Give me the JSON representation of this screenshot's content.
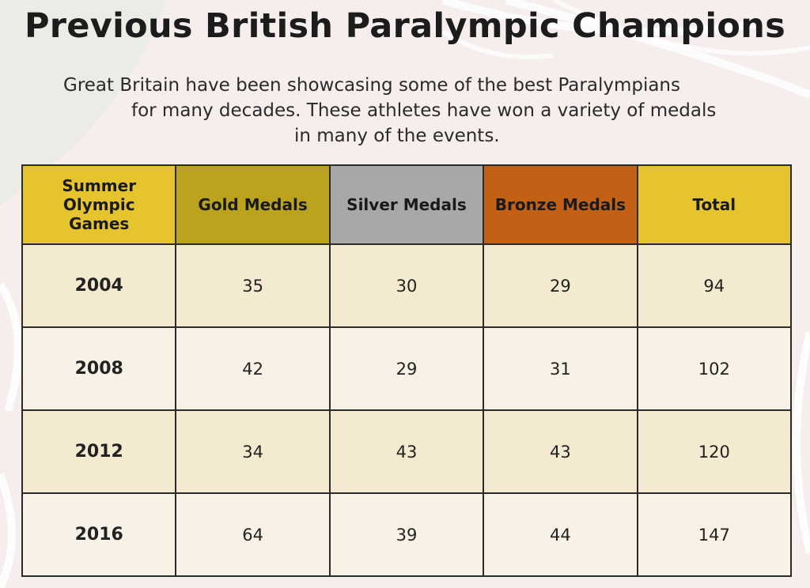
{
  "title": "Previous British Paralympic Champions",
  "intro": {
    "line1": "Great Britain have been showcasing some of the best Paralympians",
    "line2": "for many decades. These athletes have won a variety of medals",
    "line3": "in many of the events."
  },
  "table": {
    "headers": {
      "games_line1": "Summer",
      "games_line2": "Olympic",
      "games_line3": "Games",
      "gold": "Gold Medals",
      "silver": "Silver Medals",
      "bronze": "Bronze Medals",
      "total": "Total"
    },
    "rows": [
      {
        "year": "2004",
        "gold": "35",
        "silver": "30",
        "bronze": "29",
        "total": "94"
      },
      {
        "year": "2008",
        "gold": "42",
        "silver": "29",
        "bronze": "31",
        "total": "102"
      },
      {
        "year": "2012",
        "gold": "34",
        "silver": "43",
        "bronze": "43",
        "total": "120"
      },
      {
        "year": "2016",
        "gold": "64",
        "silver": "39",
        "bronze": "44",
        "total": "147"
      }
    ]
  },
  "colors": {
    "header_games": "#e5c42d",
    "header_gold": "#bba31d",
    "header_silver": "#a8a8a8",
    "header_bronze": "#c26015",
    "header_total": "#e5c42d",
    "row_odd": "#f4ead0",
    "row_even": "#f8f1e6"
  }
}
